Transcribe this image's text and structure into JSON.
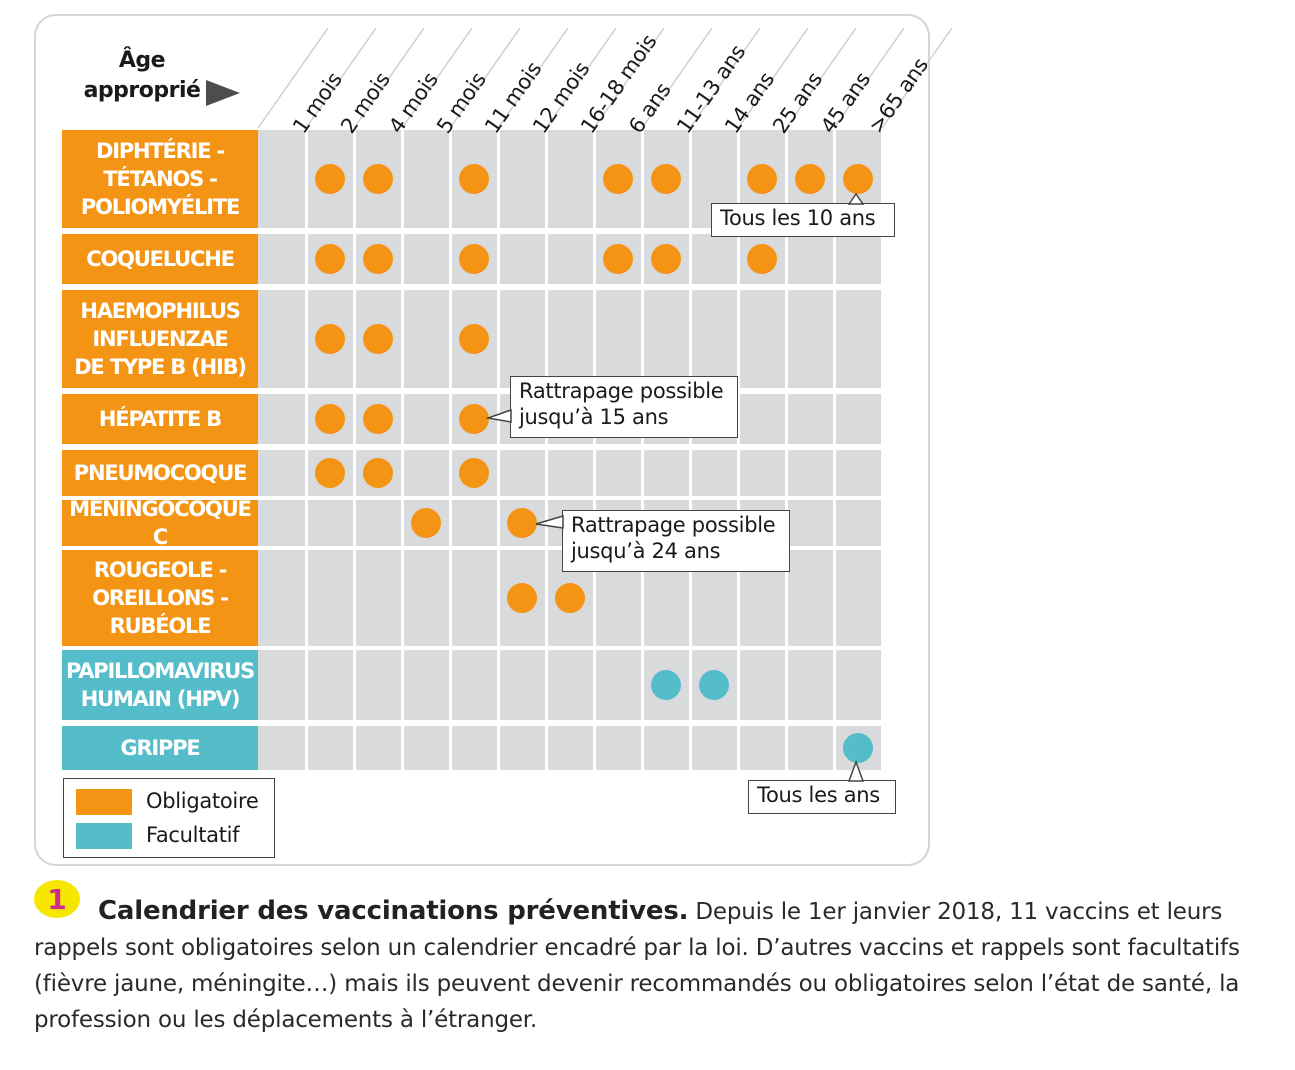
{
  "header": {
    "age_label_line1": "Âge",
    "age_label_line2": "approprié"
  },
  "columns": [
    "1 mois",
    "2 mois",
    "4 mois",
    "5 mois",
    "11 mois",
    "12 mois",
    "16-18 mois",
    "6 ans",
    "11-13 ans",
    "14 ans",
    "25 ans",
    "45 ans",
    ">65 ans"
  ],
  "rows": [
    {
      "lines": [
        "DIPHTÉRIE -",
        "TÉTANOS -",
        "POLIOMYÉLITE"
      ],
      "status": "Obligatoire",
      "doses": [
        "2 mois",
        "4 mois",
        "11 mois",
        "6 ans",
        "11-13 ans",
        "25 ans",
        "45 ans",
        ">65 ans"
      ]
    },
    {
      "lines": [
        "COQUELUCHE"
      ],
      "status": "Obligatoire",
      "doses": [
        "2 mois",
        "4 mois",
        "11 mois",
        "6 ans",
        "11-13 ans",
        "25 ans"
      ]
    },
    {
      "lines": [
        "HAEMOPHILUS",
        "INFLUENZAE",
        "DE TYPE B (HIB)"
      ],
      "status": "Obligatoire",
      "doses": [
        "2 mois",
        "4 mois",
        "11 mois"
      ]
    },
    {
      "lines": [
        "HÉPATITE B"
      ],
      "status": "Obligatoire",
      "doses": [
        "2 mois",
        "4 mois",
        "11 mois"
      ]
    },
    {
      "lines": [
        "PNEUMOCOQUE"
      ],
      "status": "Obligatoire",
      "doses": [
        "2 mois",
        "4 mois",
        "11 mois"
      ]
    },
    {
      "lines": [
        "MÉNINGOCOQUE C"
      ],
      "status": "Obligatoire",
      "doses": [
        "5 mois",
        "12 mois"
      ]
    },
    {
      "lines": [
        "ROUGEOLE -",
        "OREILLONS -",
        "RUBÉOLE"
      ],
      "status": "Obligatoire",
      "doses": [
        "12 mois",
        "16-18 mois"
      ]
    },
    {
      "lines": [
        "PAPILLOMAVIRUS",
        "HUMAIN (HPV)"
      ],
      "status": "Facultatif",
      "doses": [
        "11-13 ans",
        "14 ans"
      ]
    },
    {
      "lines": [
        "GRIPPE"
      ],
      "status": "Facultatif",
      "doses": [
        ">65 ans"
      ]
    }
  ],
  "callouts": [
    {
      "lines": [
        "Tous les 10 ans"
      ],
      "row": 0,
      "column": ">65 ans"
    },
    {
      "lines": [
        "Rattrapage possible",
        "jusqu’à 15 ans"
      ],
      "row": 3,
      "column": "11 mois"
    },
    {
      "lines": [
        "Rattrapage possible",
        "jusqu’à 24 ans"
      ],
      "row": 5,
      "column": "12 mois"
    },
    {
      "lines": [
        "Tous les ans"
      ],
      "row": 8,
      "column": ">65 ans"
    }
  ],
  "legend": [
    {
      "label": "Obligatoire",
      "color": "#f39414"
    },
    {
      "label": "Facultatif",
      "color": "#55bcc9"
    }
  ],
  "colors": {
    "obligatoire": "#f39414",
    "facultatif": "#55bcc9",
    "cell": "#d9dadc"
  },
  "caption": {
    "number": "1",
    "title": "Calendrier des vaccinations préventives.",
    "text": "Depuis le 1er janvier 2018, 11 vaccins et leurs rappels sont obligatoires selon un calendrier encadré par la loi. D’autres vaccins et rappels sont facultatifs (fièvre jaune, méningite…) mais ils peuvent devenir recommandés ou obligatoires selon l’état de santé, la profession ou les déplacements à l’étranger."
  }
}
